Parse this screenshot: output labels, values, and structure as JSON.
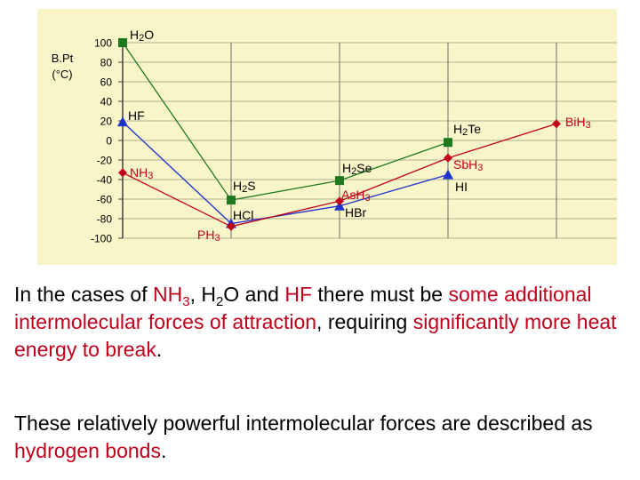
{
  "chart_data": {
    "type": "line",
    "ylabel_lines": [
      "B.Pt",
      "(°C)"
    ],
    "ylim": [
      -100,
      100
    ],
    "yticks": [
      "100",
      "80",
      "60",
      "40",
      "20",
      "0",
      "-20",
      "-40",
      "-60",
      "-80",
      "-100"
    ],
    "grid": true,
    "legend": "none",
    "background": "#f8f5c8",
    "series": [
      {
        "color": "#1f7a1f",
        "marker": "square",
        "points": [
          {
            "period": 2,
            "y": 100,
            "label": "H2O"
          },
          {
            "period": 3,
            "y": -61,
            "label": "H2S"
          },
          {
            "period": 4,
            "y": -41,
            "label": "H2Se"
          },
          {
            "period": 5,
            "y": -2,
            "label": "H2Te"
          }
        ]
      },
      {
        "color": "#2233cc",
        "marker": "triangle",
        "points": [
          {
            "period": 2,
            "y": 19,
            "label": "HF"
          },
          {
            "period": 3,
            "y": -85,
            "label": "HCl"
          },
          {
            "period": 4,
            "y": -67,
            "label": "HBr"
          },
          {
            "period": 5,
            "y": -35,
            "label": "HI"
          }
        ]
      },
      {
        "color": "#c0001a",
        "marker": "diamond",
        "points": [
          {
            "period": 2,
            "y": -33,
            "label": "NH3"
          },
          {
            "period": 3,
            "y": -88,
            "label": "PH3"
          },
          {
            "period": 4,
            "y": -62,
            "label": "AsH3"
          },
          {
            "period": 5,
            "y": -18,
            "label": "SbH3"
          },
          {
            "period": 6,
            "y": 17,
            "label": "BiH3"
          }
        ]
      }
    ]
  },
  "text": {
    "p1": {
      "a": "In the cases of ",
      "b": "NH",
      "b_sub": "3",
      "c": ", H",
      "c_sub": "2",
      "d": "O and ",
      "e": "HF",
      "f": " there must be ",
      "g": "some additional intermolecular forces of attraction",
      "h": ", requiring ",
      "i": "significantly more heat energy to break",
      "j": "."
    },
    "p2": {
      "a": "These relatively powerful intermolecular forces are described as ",
      "b": "hydrogen bonds",
      "c": "."
    }
  }
}
